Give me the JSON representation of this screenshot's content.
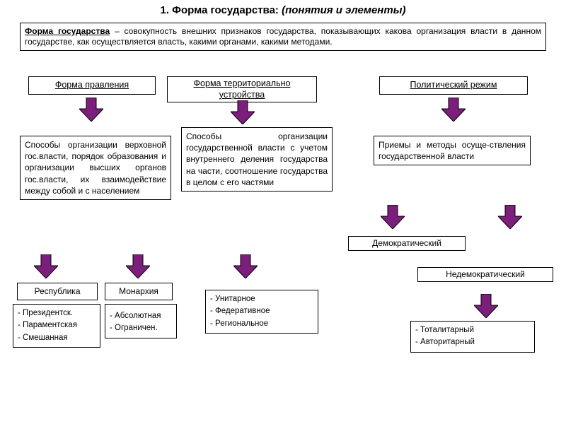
{
  "colors": {
    "arrow_fill": "#7c1e7c",
    "arrow_stroke": "#000000",
    "box_border": "#000000",
    "background": "#ffffff",
    "text": "#000000"
  },
  "title": {
    "number": "1. Форма государства:",
    "sub": " (понятия и элементы)"
  },
  "definition": {
    "lead": "Форма государства",
    "body": " – совокупность внешних признаков государства, показывающих какова организация власти в данном государстве, как осуществляется власть, какими органами, какими методами."
  },
  "cols": {
    "gov": {
      "header": "Форма правления",
      "desc": "Способы организации верховной гос.власти, порядок образования и организации высших органов гос.власти, их взаимодействие между собой и с населением",
      "left_hdr": "Республика",
      "right_hdr": "Монархия",
      "left_items": [
        "Президентск.",
        "Параментская",
        "Смешанная"
      ],
      "right_items": [
        "Абсолютная",
        "Ограничен."
      ]
    },
    "terr": {
      "header": "Форма территориально устройства",
      "desc": "Способы организации государственной власти с учетом внутреннего деления государства на части, соотношение государства в целом с его частями",
      "items": [
        "Унитарное",
        "Федеративное",
        "Региональное"
      ]
    },
    "regime": {
      "header": "Политический режим",
      "desc": "Приемы и методы осуще-ствления государственной власти",
      "left_hdr": "Демократический",
      "right_hdr": "Недемократический",
      "items": [
        "Тоталитарный",
        "Авторитарный"
      ]
    }
  },
  "layout": {
    "title_fontsize": 15,
    "box_fontsize": 12,
    "arrow_w": 34,
    "arrow_h": 34
  }
}
